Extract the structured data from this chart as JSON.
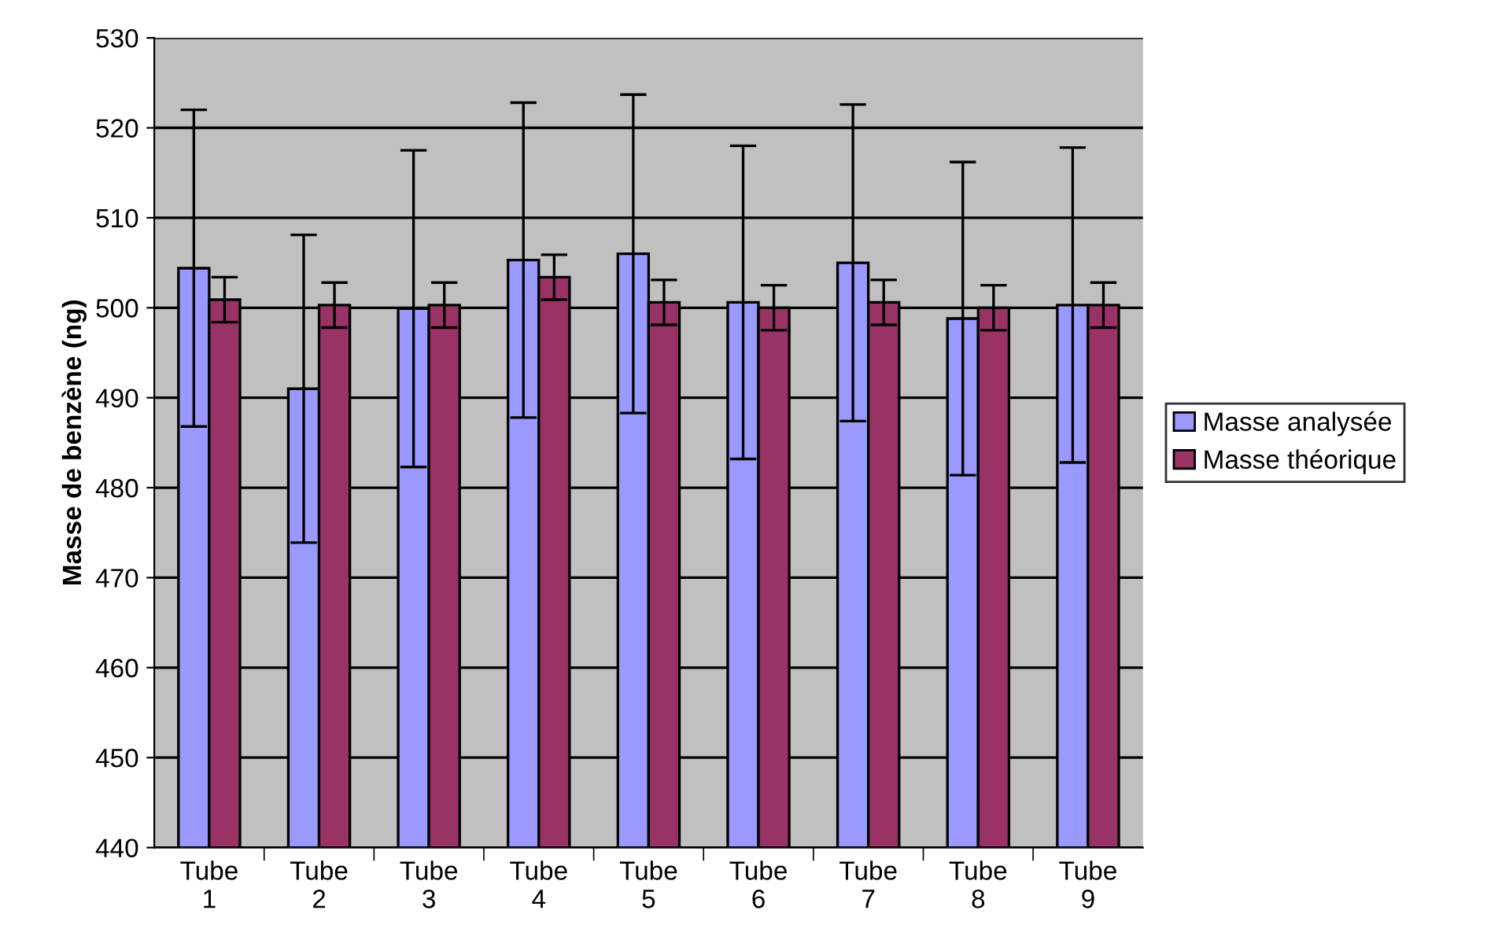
{
  "chart_data": {
    "type": "bar",
    "ylabel": "Masse de benzène (ng)",
    "categories": [
      "Tube\n1",
      "Tube\n2",
      "Tube\n3",
      "Tube\n4",
      "Tube\n5",
      "Tube\n6",
      "Tube\n7",
      "Tube\n8",
      "Tube\n9"
    ],
    "series": [
      {
        "name": "Masse analysée",
        "color": "#9999ff",
        "values": [
          504.4,
          491.0,
          499.9,
          505.3,
          506.0,
          500.6,
          505.0,
          498.8,
          500.3
        ],
        "errors": [
          17.6,
          17.1,
          17.6,
          17.5,
          17.7,
          17.4,
          17.6,
          17.4,
          17.5
        ]
      },
      {
        "name": "Masse théorique",
        "color": "#993366",
        "values": [
          500.9,
          500.3,
          500.3,
          503.4,
          500.6,
          500.0,
          500.6,
          500.0,
          500.3
        ],
        "errors": [
          2.5,
          2.5,
          2.5,
          2.5,
          2.5,
          2.5,
          2.5,
          2.5,
          2.5
        ]
      }
    ],
    "ylim": [
      440,
      530
    ],
    "yticks": [
      440,
      450,
      460,
      470,
      480,
      490,
      500,
      510,
      520,
      530
    ],
    "grid": "y",
    "legend": "right"
  }
}
